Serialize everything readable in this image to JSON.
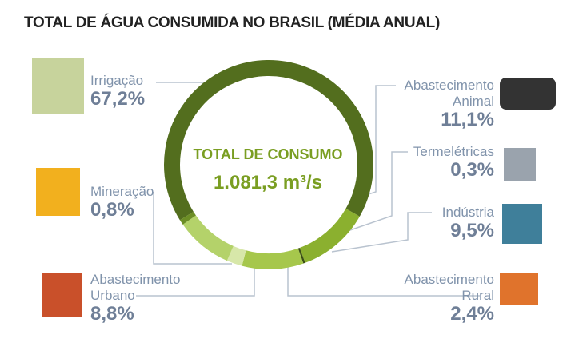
{
  "chart_data": {
    "type": "donut",
    "title": "TOTAL DE ÁGUA CONSUMIDA NO BRASIL (MÉDIA ANUAL)",
    "center_title": "TOTAL DE CONSUMO",
    "center_value": "1.081,3 m³/s",
    "categories": [
      "Irrigação",
      "Abastecimento Animal",
      "Termelétricas",
      "Indústria",
      "Abastecimento Rural",
      "Abastecimento Urbano",
      "Mineração"
    ],
    "values": [
      67.2,
      11.1,
      0.3,
      9.5,
      2.4,
      8.8,
      0.8
    ],
    "value_labels": [
      "67,2%",
      "11,1%",
      "0,3%",
      "9,5%",
      "2,4%",
      "8,8%",
      "0,8%"
    ],
    "colors": [
      "#536e1e",
      "#8bb02f",
      "#3b4f15",
      "#a6c74c",
      "#d7e7a9",
      "#b4d26a",
      "#6c8e25"
    ]
  }
}
